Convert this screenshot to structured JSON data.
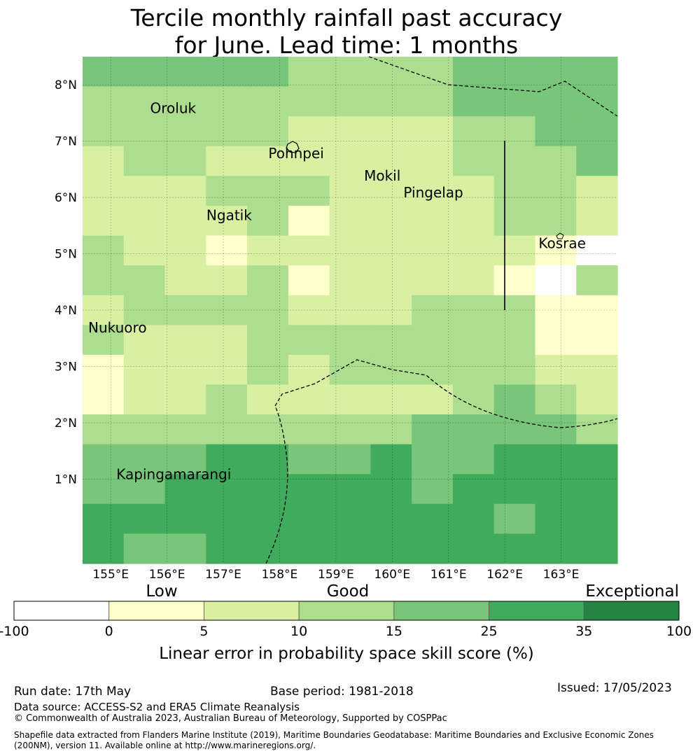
{
  "title_line1": "Tercile monthly rainfall past accuracy",
  "title_line2": "for June. Lead time: 1 months",
  "map": {
    "lon_range": [
      154.5,
      164.0
    ],
    "lat_range": [
      -0.5,
      8.5
    ],
    "lon_ticks": [
      155,
      156,
      157,
      158,
      159,
      160,
      161,
      162,
      163
    ],
    "lon_tick_labels": [
      "155°E",
      "156°E",
      "157°E",
      "158°E",
      "159°E",
      "160°E",
      "161°E",
      "162°E",
      "163°E"
    ],
    "lat_ticks": [
      1,
      2,
      3,
      4,
      5,
      6,
      7,
      8
    ],
    "lat_tick_labels": [
      "1°N",
      "2°N",
      "3°N",
      "4°N",
      "5°N",
      "6°N",
      "7°N",
      "8°N"
    ],
    "places": [
      {
        "name": "Oroluk",
        "lon": 155.7,
        "lat": 7.5
      },
      {
        "name": "Pohnpei",
        "lon": 157.8,
        "lat": 6.7
      },
      {
        "name": "Mokil",
        "lon": 159.5,
        "lat": 6.3
      },
      {
        "name": "Pingelap",
        "lon": 160.2,
        "lat": 6.0
      },
      {
        "name": "Ngatik",
        "lon": 156.7,
        "lat": 5.6
      },
      {
        "name": "Kosrae",
        "lon": 162.6,
        "lat": 5.1
      },
      {
        "name": "Nukuoro",
        "lon": 154.6,
        "lat": 3.6
      },
      {
        "name": "Kapingamarangi",
        "lon": 155.1,
        "lat": 1.0
      }
    ],
    "grid_levels": [
      "4444433334444",
      "3333333334444",
      "3333322223344",
      "2332222223334",
      "2223332222332",
      "2222312222332",
      "3221222222210",
      "3322312222103",
      "2333322233311",
      "3222333333311",
      "1222323333322",
      "1223222223432",
      "3333333344443",
      "4445544544555",
      "4455555545555",
      "5555555555455",
      "5445555555555"
    ]
  },
  "colorbar": {
    "top_labels": [
      "Low",
      "Good",
      "Exceptional"
    ],
    "tick_labels": [
      "-100",
      "0",
      "5",
      "10",
      "15",
      "25",
      "35",
      "100"
    ],
    "colors": [
      "#ffffff",
      "#ffffcc",
      "#d9f0a3",
      "#addd8e",
      "#78c679",
      "#41ab5d",
      "#238443"
    ],
    "xlabel": "Linear error in probability space skill score (%)"
  },
  "footer": {
    "run_date": "Run date: 17th May",
    "base_period": "Base period: 1981-2018",
    "issued": "Issued: 17/05/2023",
    "data_source": "Data source: ACCESS-S2 and ERA5 Climate Reanalysis",
    "copyright": "© Commonwealth of Australia 2023, Australian Bureau of Meteorology, Supported by COSPPac",
    "shapefile": "Shapefile data extracted from Flanders Marine Institute (2019), Maritime Boundaries Geodatabase: Maritime Boundaries and Exclusive Economic Zones (200NM), version 11. Available online at http://www.marineregions.org/."
  }
}
